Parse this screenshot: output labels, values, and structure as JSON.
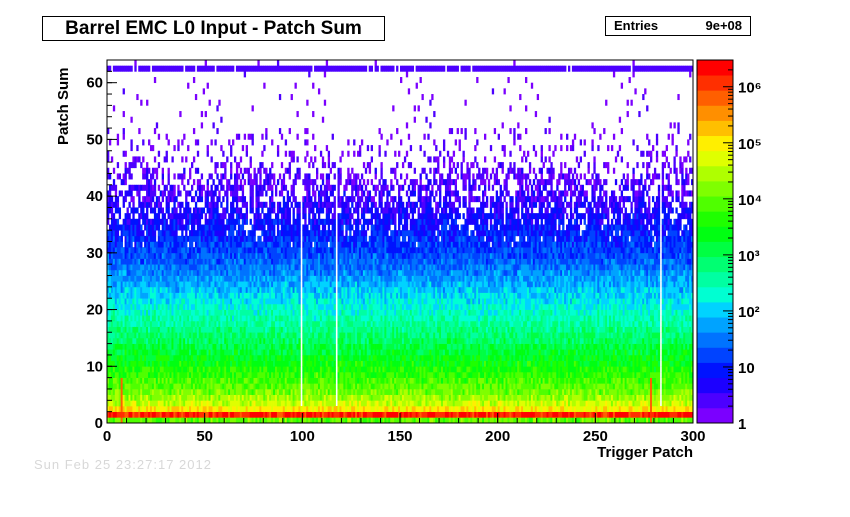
{
  "canvas": {
    "title": "Barrel EMC L0 Input - Patch Sum",
    "stats": {
      "label": "Entries",
      "value": "9e+08"
    },
    "footer": "Sun Feb 25 23:27:17 2012"
  },
  "chart_data": {
    "type": "heatmap",
    "title": "Barrel EMC L0 Input - Patch Sum",
    "xlabel": "Trigger Patch",
    "ylabel": "Patch Sum",
    "xlim": [
      0,
      300
    ],
    "ylim": [
      0,
      64
    ],
    "x_ticks": [
      "0",
      "50",
      "100",
      "150",
      "200",
      "250",
      "300"
    ],
    "y_ticks": [
      "0",
      "10",
      "20",
      "30",
      "40",
      "50",
      "60"
    ],
    "z_scale": "log",
    "zlim": [
      1,
      3000000
    ],
    "z_ticks": [
      "1",
      "10",
      "10²",
      "10³",
      "10⁴",
      "10⁵",
      "10⁶"
    ],
    "entries": "9e+08",
    "bins": {
      "nx": 300,
      "ny": 64
    },
    "palette": [
      "#7b00ff",
      "#4c00ff",
      "#1c00ff",
      "#0013ff",
      "#0043ff",
      "#0073ff",
      "#00a3ff",
      "#00d3ff",
      "#00ffd2",
      "#00ffa2",
      "#00ff72",
      "#00ff42",
      "#00ff12",
      "#1fff00",
      "#4fff00",
      "#7fff00",
      "#afff00",
      "#dfff00",
      "#ffef00",
      "#ffbf00",
      "#ff8f00",
      "#ff5f00",
      "#ff2f00",
      "#ff0000"
    ],
    "profile_log10_counts_by_patch_sum": [
      {
        "patch_sum": 0,
        "log10": 4.0
      },
      {
        "patch_sum": 1,
        "log10": 6.2
      },
      {
        "patch_sum": 2,
        "log10": 5.0
      },
      {
        "patch_sum": 3,
        "log10": 4.6
      },
      {
        "patch_sum": 5,
        "log10": 4.1
      },
      {
        "patch_sum": 8,
        "log10": 3.7
      },
      {
        "patch_sum": 12,
        "log10": 3.2
      },
      {
        "patch_sum": 18,
        "log10": 2.5
      },
      {
        "patch_sum": 25,
        "log10": 1.7
      },
      {
        "patch_sum": 30,
        "log10": 1.2
      },
      {
        "patch_sum": 38,
        "log10": 0.6
      },
      {
        "patch_sum": 45,
        "log10": 0.2
      },
      {
        "patch_sum": 55,
        "log10": 0.0
      },
      {
        "patch_sum": 62,
        "log10": 0.0
      }
    ],
    "overflow_row": {
      "patch_sum": 62,
      "log10": 0.3
    },
    "dead_patches": [
      99,
      117,
      283
    ],
    "hot_patches": [
      7,
      278
    ]
  }
}
